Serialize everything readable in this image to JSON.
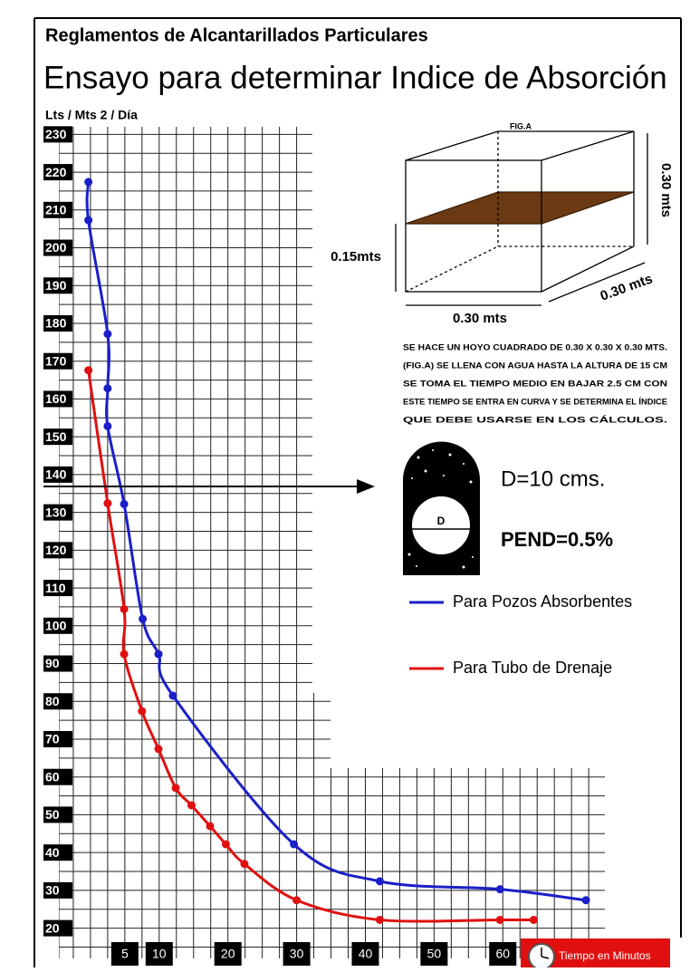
{
  "header": "Reglamentos de Alcantarillados Particulares",
  "chart_data": {
    "type": "line",
    "title": "Ensayo para determinar Indice de Absorción",
    "y_label": "Lts / Mts 2 / Día",
    "x_label": "Tiempo en Minutos",
    "xlim": [
      -4.6,
      73.8
    ],
    "xticks": [
      5,
      10,
      20,
      30,
      40,
      50,
      60
    ],
    "ylim": [
      12,
      232
    ],
    "yticks": [
      20,
      30,
      40,
      50,
      60,
      70,
      80,
      90,
      100,
      110,
      120,
      130,
      140,
      150,
      160,
      170,
      180,
      190,
      200,
      210,
      220,
      230
    ],
    "grid": true,
    "series": [
      {
        "name": "Para Pozos Absorbentes",
        "color": "#1a1fc8",
        "x": [
          -0.3,
          -0.3,
          2.5,
          2.5,
          2.5,
          4.9,
          7.6,
          9.9,
          12.0,
          29.6,
          42.1,
          59.6,
          72.1
        ],
        "values": [
          217.4,
          207.3,
          177.2,
          162.8,
          152.8,
          132.2,
          101.8,
          92.5,
          81.5,
          42.2,
          32.4,
          30.3,
          27.4
        ]
      },
      {
        "name": "Para Tubo de Drenaje",
        "color": "#e01010",
        "x": [
          -0.3,
          2.5,
          4.9,
          4.9,
          7.5,
          9.9,
          12.4,
          14.7,
          17.4,
          19.7,
          22.4,
          30.0,
          42.1,
          59.6,
          64.5
        ],
        "values": [
          167.6,
          132.4,
          104.4,
          92.5,
          77.4,
          67.4,
          57.1,
          52.5,
          47.0,
          42.2,
          37.0,
          27.4,
          22.2,
          22.2,
          22.2
        ]
      }
    ]
  },
  "figure": {
    "label": "FIG.A",
    "height": "0.30 mts",
    "water_level": "0.15mts",
    "width": "0.30 mts",
    "depth": "0.30 mts",
    "description": [
      "SE HACE UN HOYO CUADRADO DE 0.30 X 0.30 X 0.30 MTS.",
      "(FIG.A) SE LLENA CON AGUA HASTA LA ALTURA DE 15 CM",
      "SE TOMA EL TIEMPO MEDIO EN BAJAR 2.5 CM CON",
      "ESTE TIEMPO SE ENTRA EN CURVA Y SE DETERMINA EL ÍNDICE",
      "QUE DEBE USARSE EN LOS CÁLCULOS."
    ]
  },
  "pipe": {
    "symbol": "D",
    "diameter": "D=10 cms.",
    "slope": "PEND=0.5%"
  }
}
